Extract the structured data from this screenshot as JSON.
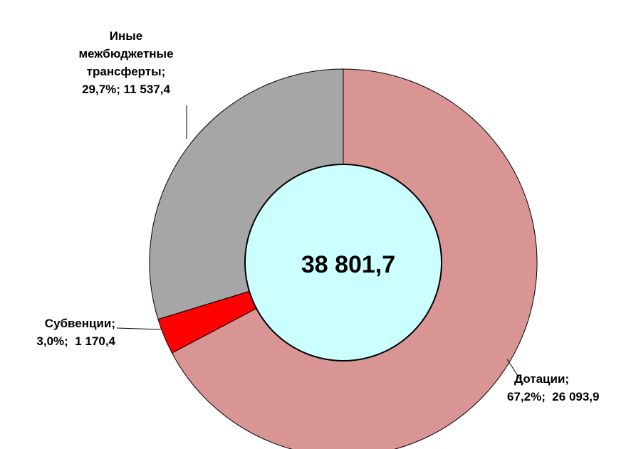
{
  "chart_data": {
    "type": "donut",
    "categories": [
      "Дотации;",
      "Субвенции;",
      "Иные межбюджетные трансферты;"
    ],
    "values": [
      67.2,
      3.0,
      29.7
    ],
    "value_labels": [
      "67,2%;  26 093,9",
      "3,0%;  1 170,4",
      "29,7%;  11 537,4"
    ],
    "colors": [
      "#d99594",
      "#ff0000",
      "#a6a6a6"
    ],
    "total": {
      "value": 38801.7,
      "label": "38 801,7"
    },
    "center_color": "#ccffff"
  }
}
